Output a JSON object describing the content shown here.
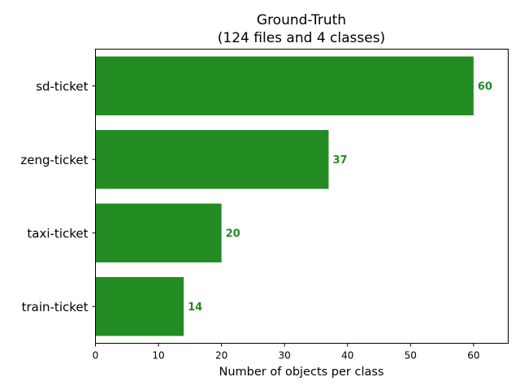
{
  "chart_data": {
    "type": "bar",
    "orientation": "horizontal",
    "title": "Ground-Truth",
    "subtitle": "(124 files and 4 classes)",
    "xlabel": "Number of objects per class",
    "ylabel": "",
    "categories": [
      "sd-ticket",
      "zeng-ticket",
      "taxi-ticket",
      "train-ticket"
    ],
    "values": [
      60,
      37,
      20,
      14
    ],
    "xlim": [
      0,
      65.5
    ],
    "xticks": [
      0,
      10,
      20,
      30,
      40,
      50,
      60
    ],
    "bar_color": "#228b22",
    "label_color": "#228b22",
    "grid": false,
    "legend": "none"
  }
}
